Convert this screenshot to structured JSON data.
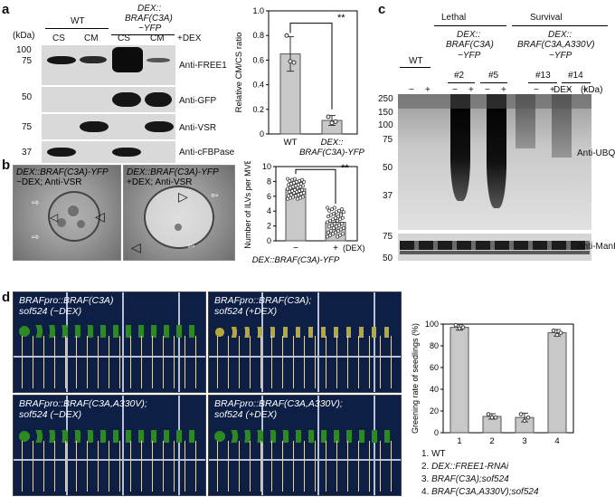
{
  "panel_a": {
    "label": "a",
    "kda": "(kDa)",
    "wt": "WT",
    "dex_construct_line1": "DEX::",
    "dex_construct_line2": "BRAF(C3A)",
    "dex_construct_line3": "−YFP",
    "cs": "CS",
    "cm": "CM",
    "treatment": "+DEX",
    "markers": [
      "100",
      "75",
      "50",
      "75",
      "37"
    ],
    "antibodies": [
      "Anti-FREE1",
      "Anti-GFP",
      "Anti-VSR",
      "Anti-cFBPase"
    ],
    "chart_data": {
      "type": "bar",
      "categories": [
        "WT",
        "DEX::BRAF(C3A)-YFP"
      ],
      "cat_line1": [
        "WT",
        "DEX::"
      ],
      "cat_line2": [
        "",
        "BRAF(C3A)-YFP"
      ],
      "values": [
        0.65,
        0.11
      ],
      "errors": [
        0.14,
        0.04
      ],
      "points": [
        [
          0.8,
          0.59,
          0.58
        ],
        [
          0.14,
          0.09,
          0.1
        ]
      ],
      "ylabel": "Relative CM/CS ratio",
      "ylim": [
        0,
        1.0
      ],
      "yticks": [
        "0",
        "0.2",
        "0.4",
        "0.6",
        "0.8",
        "1.0"
      ],
      "significance": "**"
    }
  },
  "panel_b": {
    "label": "b",
    "em1_line1": "DEX::BRAF(C3A)-YFP",
    "em1_line2": "−DEX; Anti-VSR",
    "em2_line1": "DEX::BRAF(C3A)-YFP",
    "em2_line2": "+DEX; Anti-VSR",
    "chart_data": {
      "type": "scatter",
      "categories": [
        "−",
        "+"
      ],
      "treatment_label": "(DEX)",
      "construct_label": "DEX::BRAF(C3A)-YFP",
      "values": [
        7.0,
        2.5
      ],
      "errors": [
        0.9,
        1.3
      ],
      "ylabel": "Number of ILVs per MVB",
      "ylim": [
        0,
        10
      ],
      "yticks": [
        "0",
        "2",
        "4",
        "6",
        "8",
        "10"
      ],
      "significance": "**"
    }
  },
  "panel_c": {
    "label": "c",
    "lethal": "Lethal",
    "survival": "Survival",
    "wt": "WT",
    "construct1_line1": "DEX::",
    "construct1_line2": "BRAF(C3A)",
    "construct1_line3": "−YFP",
    "construct2_line1": "DEX::",
    "construct2_line2": "BRAF(C3A,A330V)",
    "construct2_line3": "−YFP",
    "lines": [
      "#2",
      "#5",
      "#13",
      "#14"
    ],
    "lane_signs": [
      "−",
      "+",
      "−",
      "+",
      "−",
      "+",
      "−",
      "+",
      "−",
      "+"
    ],
    "dex": "DEX",
    "kda": "(kDa)",
    "markers_top": [
      "250",
      "150",
      "100",
      "75",
      "50",
      "37"
    ],
    "markers_bottom": [
      "75",
      "50"
    ],
    "antibodies": [
      "Anti-UBQ",
      "Anti-ManI"
    ]
  },
  "panel_d": {
    "label": "d",
    "plates": [
      {
        "line1": "BRAFpro::BRAF(C3A)",
        "line2": "sof524 (−DEX)"
      },
      {
        "line1": "BRAFpro::BRAF(C3A);",
        "line2": "sof524 (+DEX)"
      },
      {
        "line1": "BRAFpro::BRAF(C3A,A330V);",
        "line2": "sof524 (−DEX)"
      },
      {
        "line1": "BRAFpro::BRAF(C3A,A330V);",
        "line2": "sof524 (+DEX)"
      }
    ],
    "legend": [
      "1. WT",
      "2. DEX::FREE1-RNAi",
      "3. BRAF(C3A);sof524",
      "4. BRAF(C3A,A330V);sof524"
    ],
    "chart_data": {
      "type": "bar",
      "categories": [
        "1",
        "2",
        "3",
        "4"
      ],
      "values": [
        97,
        15,
        14,
        92
      ],
      "errors": [
        2.5,
        2.5,
        4,
        3
      ],
      "points": [
        [
          99,
          96,
          97
        ],
        [
          17,
          14,
          14
        ],
        [
          17,
          11,
          14
        ],
        [
          94,
          90,
          92
        ]
      ],
      "ylabel": "Greening rate of seedlings (%)",
      "ylim": [
        0,
        100
      ],
      "yticks": [
        "0",
        "20",
        "40",
        "60",
        "80",
        "100"
      ]
    }
  }
}
